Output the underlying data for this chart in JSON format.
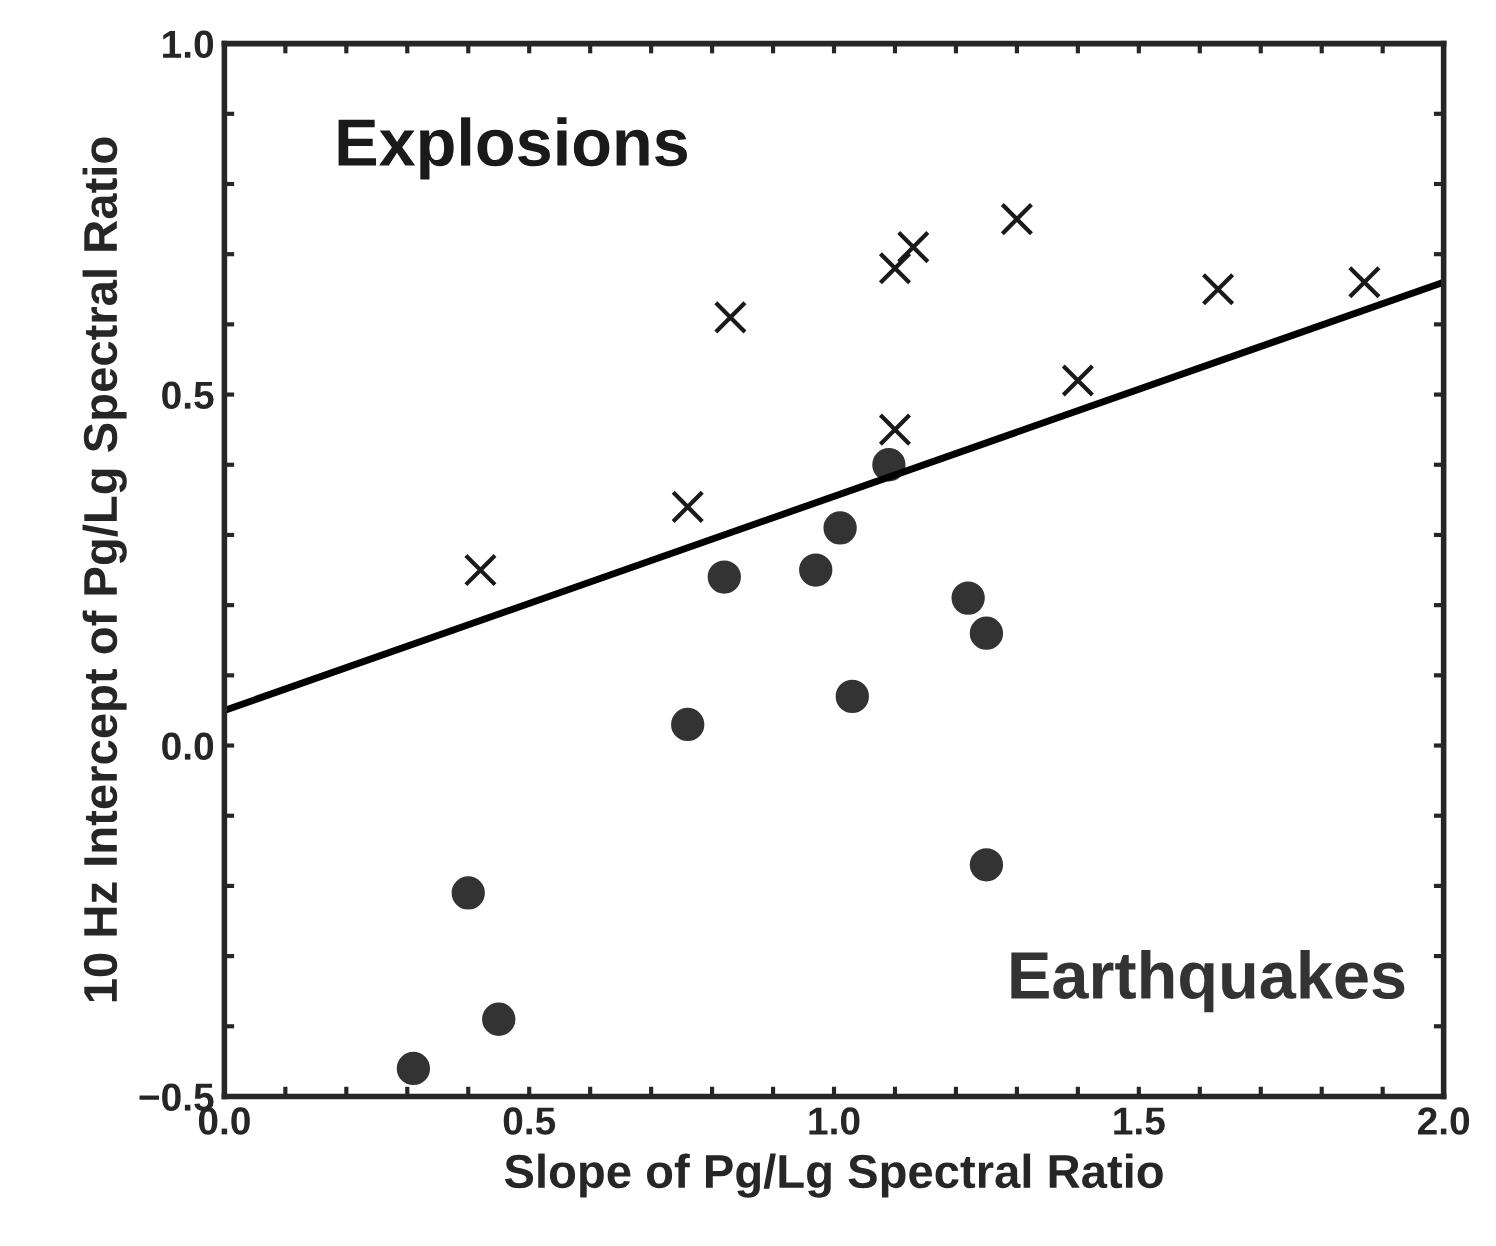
{
  "chart_data": {
    "type": "scatter",
    "xlabel": "Slope of Pg/Lg Spectral Ratio",
    "ylabel": "10 Hz Intercept of Pg/Lg Spectral Ratio",
    "series": [
      {
        "name": "Explosions",
        "color": "#1a1a1a",
        "marker": "cross",
        "x": [
          0.42,
          0.83,
          0.76,
          1.1,
          1.13,
          1.3,
          1.63,
          1.87,
          1.4,
          1.1
        ],
        "values": [
          0.25,
          0.61,
          0.34,
          0.68,
          0.71,
          0.75,
          0.65,
          0.66,
          0.52,
          0.45
        ]
      },
      {
        "name": "Earthquakes",
        "color": "#333333",
        "marker": "circle",
        "x": [
          0.82,
          0.76,
          0.4,
          0.45,
          0.31,
          1.09,
          1.01,
          0.97,
          1.22,
          1.25,
          1.03,
          1.25
        ],
        "values": [
          0.24,
          0.03,
          -0.21,
          -0.39,
          -0.46,
          0.4,
          0.31,
          0.25,
          0.21,
          0.16,
          0.07,
          -0.17
        ]
      },
      {
        "type": "line",
        "color": "#000000",
        "marker": "none",
        "x": [
          0.0,
          2.0
        ],
        "values": [
          0.05,
          0.66
        ]
      }
    ],
    "xlim": [
      0.0,
      2.0
    ],
    "ylim": [
      -0.5,
      1.0
    ],
    "xticks": [
      {
        "value": 0.0,
        "label": "0.0"
      },
      {
        "value": 0.1,
        "label": null
      },
      {
        "value": 0.2,
        "label": null
      },
      {
        "value": 0.3,
        "label": null
      },
      {
        "value": 0.4,
        "label": null
      },
      0.5,
      {
        "value": 0.6,
        "label": null
      },
      {
        "value": 0.7,
        "label": null
      },
      {
        "value": 0.8,
        "label": null
      },
      {
        "value": 0.9,
        "label": null
      },
      {
        "value": 1.0,
        "label": "1.0"
      },
      {
        "value": 1.1,
        "label": null
      },
      {
        "value": 1.2,
        "label": null
      },
      {
        "value": 1.3,
        "label": null
      },
      {
        "value": 1.4,
        "label": null
      },
      1.5,
      {
        "value": 1.6,
        "label": null
      },
      {
        "value": 1.7,
        "label": null
      },
      {
        "value": 1.8,
        "label": null
      },
      {
        "value": 1.9,
        "label": null
      },
      {
        "value": 2.0,
        "label": "2.0"
      }
    ],
    "yticks": [
      {
        "value": -0.5,
        "label": "−0.5"
      },
      {
        "value": -0.4,
        "label": null
      },
      {
        "value": -0.3,
        "label": null
      },
      {
        "value": -0.2,
        "label": null
      },
      {
        "value": -0.1,
        "label": null
      },
      {
        "value": 0.0,
        "label": "0.0"
      },
      {
        "value": 0.1,
        "label": null
      },
      {
        "value": 0.2,
        "label": null
      },
      {
        "value": 0.3,
        "label": null
      },
      {
        "value": 0.4,
        "label": null
      },
      0.5,
      {
        "value": 0.6,
        "label": null
      },
      {
        "value": 0.7,
        "label": null
      },
      {
        "value": 0.8,
        "label": null
      },
      {
        "value": 0.9,
        "label": null
      },
      {
        "value": 1.0,
        "label": "1.0"
      }
    ],
    "grid": false,
    "legend": "top left"
  }
}
